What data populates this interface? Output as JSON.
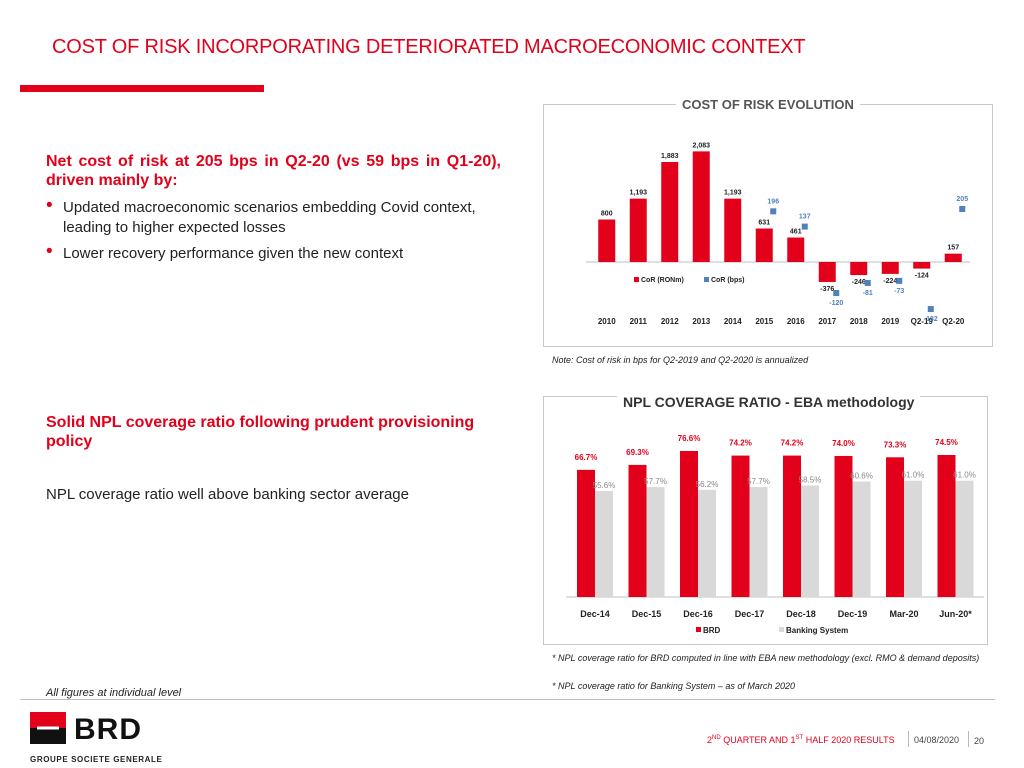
{
  "header": {
    "title": "COST OF RISK INCORPORATING DETERIORATED MACROECONOMIC CONTEXT"
  },
  "section1": {
    "heading": "Net cost of risk at 205 bps in Q2-20 (vs 59 bps in Q1-20), driven mainly by:",
    "bullets": [
      "Updated macroeconomic scenarios embedding Covid context, leading to higher expected losses",
      "Lower recovery performance given the new context"
    ]
  },
  "section2": {
    "heading": "Solid NPL coverage ratio following prudent provisioning policy",
    "text": "NPL coverage ratio well above banking sector average"
  },
  "panel1": {
    "title": "COST OF RISK EVOLUTION",
    "note": "Note: Cost of risk in bps for Q2-2019 and Q2-2020 is annualized"
  },
  "panel2": {
    "title": "NPL COVERAGE RATIO - EBA methodology",
    "footnote1": "*  NPL coverage ratio for BRD computed in line with EBA new methodology (excl. RMO & demand deposits)",
    "footnote2": "*  NPL coverage ratio for Banking System – as of March 2020"
  },
  "figures_note": "All figures at individual level",
  "logo": {
    "brand": "BRD",
    "group": "GROUPE SOCIETE GENERALE"
  },
  "footer": {
    "title_html": "2<sup>ND</sup> QUARTER AND 1<sup>ST</sup> HALF 2020 RESULTS",
    "date": "04/08/2020",
    "page": "20"
  },
  "colors": {
    "brand_red": "#e2001a",
    "bps_blue": "#4f81bd",
    "banking_grey": "#d9d9d9"
  },
  "chart_data": [
    {
      "type": "bar",
      "title": "COST OF RISK EVOLUTION",
      "categories": [
        "2010",
        "2011",
        "2012",
        "2013",
        "2014",
        "2015",
        "2016",
        "2017",
        "2018",
        "2019",
        "Q2-19",
        "Q2-20"
      ],
      "series": [
        {
          "name": "CoR (RONm)",
          "kind": "bar",
          "color": "#e2001a",
          "values": [
            800,
            1193,
            1883,
            2083,
            1193,
            631,
            461,
            -376,
            -246,
            -224,
            -124,
            157
          ],
          "labels": [
            "800",
            "1,193",
            "1,883",
            "2,083",
            "1,193",
            "631",
            "461",
            "-376",
            "-246",
            "-224",
            "-124",
            "157"
          ]
        },
        {
          "name": "CoR (bps)",
          "kind": "marker",
          "color": "#4f81bd",
          "values": [
            null,
            null,
            null,
            null,
            null,
            196,
            137,
            -120,
            -81,
            -73,
            -182,
            205
          ],
          "labels": [
            "",
            "",
            "",
            "",
            "",
            "196",
            "137",
            "-120",
            "-81",
            "-73",
            "-182",
            "205"
          ]
        }
      ],
      "legend": "center"
    },
    {
      "type": "bar",
      "title": "NPL COVERAGE RATIO - EBA methodology",
      "categories": [
        "Dec-14",
        "Dec-15",
        "Dec-16",
        "Dec-17",
        "Dec-18",
        "Dec-19",
        "Mar-20",
        "Jun-20*"
      ],
      "series": [
        {
          "name": "BRD",
          "color": "#e2001a",
          "values": [
            66.7,
            69.3,
            76.6,
            74.2,
            74.2,
            74.0,
            73.3,
            74.5
          ],
          "labels": [
            "66.7%",
            "69.3%",
            "76.6%",
            "74.2%",
            "74.2%",
            "74.0%",
            "73.3%",
            "74.5%"
          ]
        },
        {
          "name": "Banking System",
          "color": "#d9d9d9",
          "values": [
            55.6,
            57.7,
            56.2,
            57.7,
            58.5,
            60.6,
            61.0,
            61.0
          ],
          "labels": [
            "55.6%",
            "57.7%",
            "56.2%",
            "57.7%",
            "58.5%",
            "60.6%",
            "61.0%",
            "61.0%"
          ]
        }
      ],
      "legend": "bottom"
    }
  ]
}
